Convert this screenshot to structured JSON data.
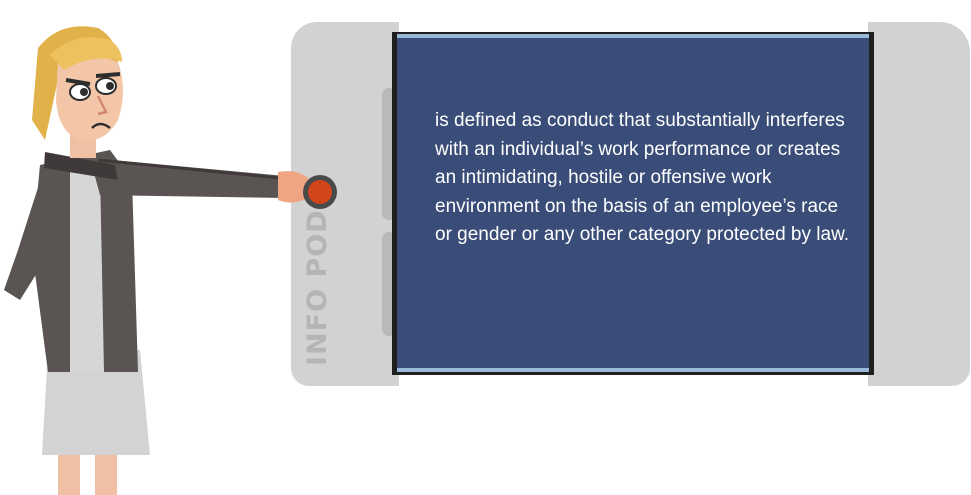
{
  "pod": {
    "brand_label": "INFO POD",
    "screen_text": "is defined as conduct that substantially interferes with an individual’s work performance or creates an intimidating, hostile or offensive work environment on the basis of an employee’s race or gender or any other category protected by law."
  },
  "colors": {
    "screen": "#394d78",
    "pod_body": "#d2d2d2",
    "button": "#d2451d"
  }
}
